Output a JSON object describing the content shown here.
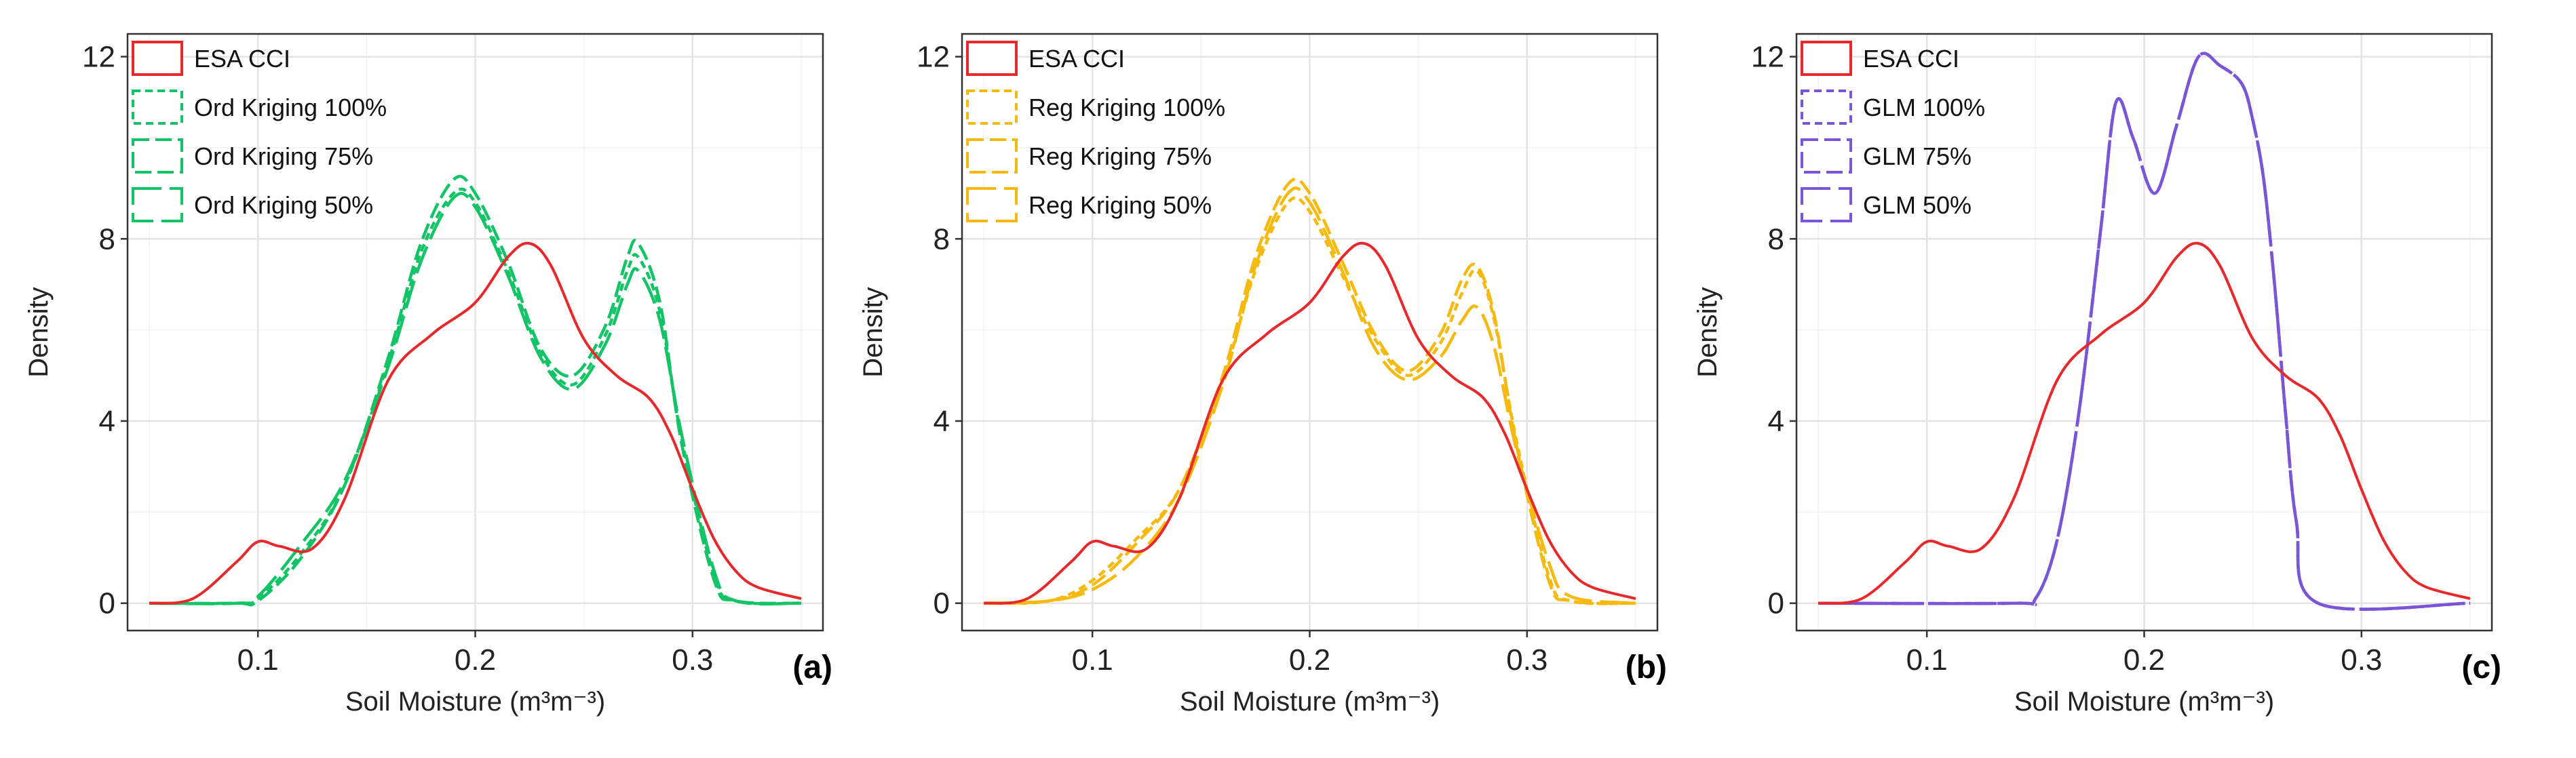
{
  "chart_data": [
    {
      "type": "line",
      "panel_label": "(a)",
      "xlabel": "Soil Moisture (m³m⁻³)",
      "ylabel": "Density",
      "xlim": [
        0.04,
        0.36
      ],
      "ylim": [
        -0.6,
        12.5
      ],
      "xticks": [
        0.1,
        0.2,
        0.3
      ],
      "xtick_labels": [
        "0.1",
        "0.2",
        "0.3"
      ],
      "yticks": [
        0,
        4,
        8,
        12
      ],
      "ytick_labels": [
        "0",
        "4",
        "8",
        "12"
      ],
      "grid": true,
      "legend_position": "top-left",
      "series": [
        {
          "name": "ESA CCI",
          "color": "#e8282b",
          "dash": "solid",
          "x": [
            0.05,
            0.07,
            0.09,
            0.1,
            0.11,
            0.125,
            0.14,
            0.16,
            0.18,
            0.2,
            0.215,
            0.225,
            0.235,
            0.25,
            0.265,
            0.28,
            0.29,
            0.3,
            0.31,
            0.32,
            0.33,
            0.35
          ],
          "y": [
            0,
            0.1,
            0.9,
            1.35,
            1.25,
            1.2,
            2.3,
            4.9,
            5.9,
            6.6,
            7.6,
            7.9,
            7.4,
            5.8,
            5.0,
            4.5,
            3.7,
            2.5,
            1.4,
            0.7,
            0.35,
            0.1
          ]
        },
        {
          "name": "Ord Kriging 100%",
          "color": "#12c466",
          "dash": "short",
          "x": [
            0.05,
            0.09,
            0.1,
            0.12,
            0.14,
            0.16,
            0.175,
            0.19,
            0.2,
            0.215,
            0.23,
            0.245,
            0.26,
            0.27,
            0.275,
            0.285,
            0.295,
            0.31,
            0.32,
            0.35
          ],
          "y": [
            0,
            0,
            0.1,
            1.1,
            2.6,
            5.3,
            7.7,
            9.0,
            8.8,
            7.3,
            5.5,
            4.8,
            5.9,
            7.3,
            7.6,
            6.4,
            3.6,
            0.6,
            0.05,
            0
          ]
        },
        {
          "name": "Ord Kriging 75%",
          "color": "#12c466",
          "dash": "medium",
          "x": [
            0.05,
            0.09,
            0.1,
            0.12,
            0.14,
            0.16,
            0.175,
            0.19,
            0.2,
            0.215,
            0.23,
            0.245,
            0.26,
            0.27,
            0.275,
            0.285,
            0.295,
            0.31,
            0.32,
            0.35
          ],
          "y": [
            0,
            0,
            0.05,
            1.0,
            2.6,
            5.4,
            7.9,
            9.3,
            9.0,
            7.5,
            5.6,
            5.0,
            6.1,
            7.6,
            7.9,
            6.6,
            3.5,
            0.5,
            0.05,
            0
          ]
        },
        {
          "name": "Ord Kriging 50%",
          "color": "#12c466",
          "dash": "long",
          "x": [
            0.05,
            0.09,
            0.1,
            0.12,
            0.14,
            0.16,
            0.175,
            0.19,
            0.2,
            0.215,
            0.23,
            0.245,
            0.26,
            0.27,
            0.275,
            0.285,
            0.295,
            0.31,
            0.32,
            0.35
          ],
          "y": [
            0,
            0,
            0.15,
            1.3,
            2.7,
            5.2,
            7.5,
            8.9,
            8.7,
            7.2,
            5.4,
            4.7,
            5.7,
            7.0,
            7.3,
            6.2,
            3.7,
            0.7,
            0.05,
            0
          ]
        }
      ]
    },
    {
      "type": "line",
      "panel_label": "(b)",
      "xlabel": "Soil Moisture (m³m⁻³)",
      "ylabel": "Density",
      "xlim": [
        0.04,
        0.36
      ],
      "ylim": [
        -0.6,
        12.5
      ],
      "xticks": [
        0.1,
        0.2,
        0.3
      ],
      "xtick_labels": [
        "0.1",
        "0.2",
        "0.3"
      ],
      "yticks": [
        0,
        4,
        8,
        12
      ],
      "ytick_labels": [
        "0",
        "4",
        "8",
        "12"
      ],
      "grid": true,
      "legend_position": "top-left",
      "series": [
        {
          "name": "ESA CCI",
          "color": "#e8282b",
          "dash": "solid",
          "x": [
            0.05,
            0.07,
            0.09,
            0.1,
            0.11,
            0.125,
            0.14,
            0.16,
            0.18,
            0.2,
            0.215,
            0.225,
            0.235,
            0.25,
            0.265,
            0.28,
            0.29,
            0.3,
            0.31,
            0.32,
            0.33,
            0.35
          ],
          "y": [
            0,
            0.1,
            0.9,
            1.35,
            1.25,
            1.2,
            2.3,
            4.9,
            5.9,
            6.6,
            7.6,
            7.9,
            7.4,
            5.8,
            5.0,
            4.5,
            3.7,
            2.5,
            1.4,
            0.7,
            0.35,
            0.1
          ]
        },
        {
          "name": "Reg Kriging 100%",
          "color": "#f6b90e",
          "dash": "short",
          "x": [
            0.05,
            0.08,
            0.1,
            0.12,
            0.14,
            0.16,
            0.175,
            0.19,
            0.2,
            0.215,
            0.23,
            0.245,
            0.26,
            0.27,
            0.277,
            0.285,
            0.295,
            0.31,
            0.32,
            0.35
          ],
          "y": [
            0,
            0.05,
            0.5,
            1.4,
            2.5,
            4.9,
            7.3,
            8.8,
            8.6,
            7.2,
            5.8,
            5.0,
            5.7,
            6.8,
            7.3,
            6.2,
            3.6,
            0.6,
            0.05,
            0
          ]
        },
        {
          "name": "Reg Kriging 75%",
          "color": "#f6b90e",
          "dash": "medium",
          "x": [
            0.05,
            0.08,
            0.1,
            0.12,
            0.14,
            0.16,
            0.175,
            0.19,
            0.2,
            0.215,
            0.23,
            0.245,
            0.26,
            0.27,
            0.277,
            0.285,
            0.295,
            0.31,
            0.32,
            0.35
          ],
          "y": [
            0,
            0.05,
            0.4,
            1.3,
            2.5,
            5.0,
            7.6,
            9.2,
            9.0,
            7.5,
            5.9,
            5.1,
            5.9,
            7.1,
            7.4,
            6.3,
            3.5,
            0.5,
            0.05,
            0
          ]
        },
        {
          "name": "Reg Kriging 50%",
          "color": "#f6b90e",
          "dash": "long",
          "x": [
            0.05,
            0.08,
            0.1,
            0.12,
            0.14,
            0.16,
            0.175,
            0.19,
            0.2,
            0.215,
            0.23,
            0.245,
            0.26,
            0.27,
            0.277,
            0.285,
            0.295,
            0.31,
            0.32,
            0.35
          ],
          "y": [
            0,
            0.05,
            0.3,
            1.0,
            2.3,
            4.8,
            7.4,
            9.0,
            8.8,
            7.3,
            5.6,
            4.9,
            5.4,
            6.2,
            6.5,
            5.6,
            3.4,
            0.9,
            0.15,
            0
          ]
        }
      ]
    },
    {
      "type": "line",
      "panel_label": "(c)",
      "xlabel": "Soil Moisture (m³m⁻³)",
      "ylabel": "Density",
      "xlim": [
        0.04,
        0.36
      ],
      "ylim": [
        -0.6,
        12.5
      ],
      "xticks": [
        0.1,
        0.2,
        0.3
      ],
      "xtick_labels": [
        "0.1",
        "0.2",
        "0.3"
      ],
      "yticks": [
        0,
        4,
        8,
        12
      ],
      "ytick_labels": [
        "0",
        "4",
        "8",
        "12"
      ],
      "grid": true,
      "legend_position": "top-left",
      "series": [
        {
          "name": "ESA CCI",
          "color": "#e8282b",
          "dash": "solid",
          "x": [
            0.05,
            0.07,
            0.09,
            0.1,
            0.11,
            0.125,
            0.14,
            0.16,
            0.18,
            0.2,
            0.215,
            0.225,
            0.235,
            0.25,
            0.265,
            0.28,
            0.29,
            0.3,
            0.31,
            0.32,
            0.33,
            0.35
          ],
          "y": [
            0,
            0.1,
            0.9,
            1.35,
            1.25,
            1.2,
            2.3,
            4.9,
            5.9,
            6.6,
            7.6,
            7.9,
            7.4,
            5.8,
            5.0,
            4.5,
            3.7,
            2.5,
            1.4,
            0.7,
            0.35,
            0.1
          ]
        },
        {
          "name": "GLM 100%",
          "color": "#7b55d8",
          "dash": "short",
          "x": [
            0.05,
            0.14,
            0.15,
            0.16,
            0.17,
            0.18,
            0.187,
            0.195,
            0.205,
            0.215,
            0.225,
            0.235,
            0.245,
            0.25,
            0.255,
            0.26,
            0.265,
            0.27,
            0.28,
            0.35
          ],
          "y": [
            0,
            0,
            0.1,
            1.4,
            4.2,
            8.2,
            11.0,
            10.2,
            9.0,
            10.5,
            12.0,
            11.8,
            11.4,
            10.6,
            9.3,
            7.0,
            4.2,
            1.8,
            0,
            0
          ]
        },
        {
          "name": "GLM 75%",
          "color": "#7b55d8",
          "dash": "medium",
          "x": [
            0.05,
            0.14,
            0.15,
            0.16,
            0.17,
            0.18,
            0.187,
            0.195,
            0.205,
            0.215,
            0.225,
            0.235,
            0.245,
            0.25,
            0.255,
            0.26,
            0.265,
            0.27,
            0.28,
            0.35
          ],
          "y": [
            0,
            0,
            0.1,
            1.4,
            4.2,
            8.2,
            11.0,
            10.2,
            9.0,
            10.5,
            12.0,
            11.8,
            11.4,
            10.6,
            9.3,
            7.0,
            4.2,
            1.8,
            0,
            0
          ]
        },
        {
          "name": "GLM 50%",
          "color": "#7b55d8",
          "dash": "long",
          "x": [
            0.05,
            0.14,
            0.15,
            0.16,
            0.17,
            0.18,
            0.187,
            0.195,
            0.205,
            0.215,
            0.225,
            0.235,
            0.245,
            0.25,
            0.255,
            0.26,
            0.265,
            0.27,
            0.28,
            0.35
          ],
          "y": [
            0,
            0,
            0.1,
            1.4,
            4.2,
            8.2,
            11.0,
            10.2,
            9.0,
            10.5,
            12.0,
            11.8,
            11.4,
            10.6,
            9.3,
            7.0,
            4.2,
            1.8,
            0,
            0
          ]
        }
      ]
    }
  ]
}
